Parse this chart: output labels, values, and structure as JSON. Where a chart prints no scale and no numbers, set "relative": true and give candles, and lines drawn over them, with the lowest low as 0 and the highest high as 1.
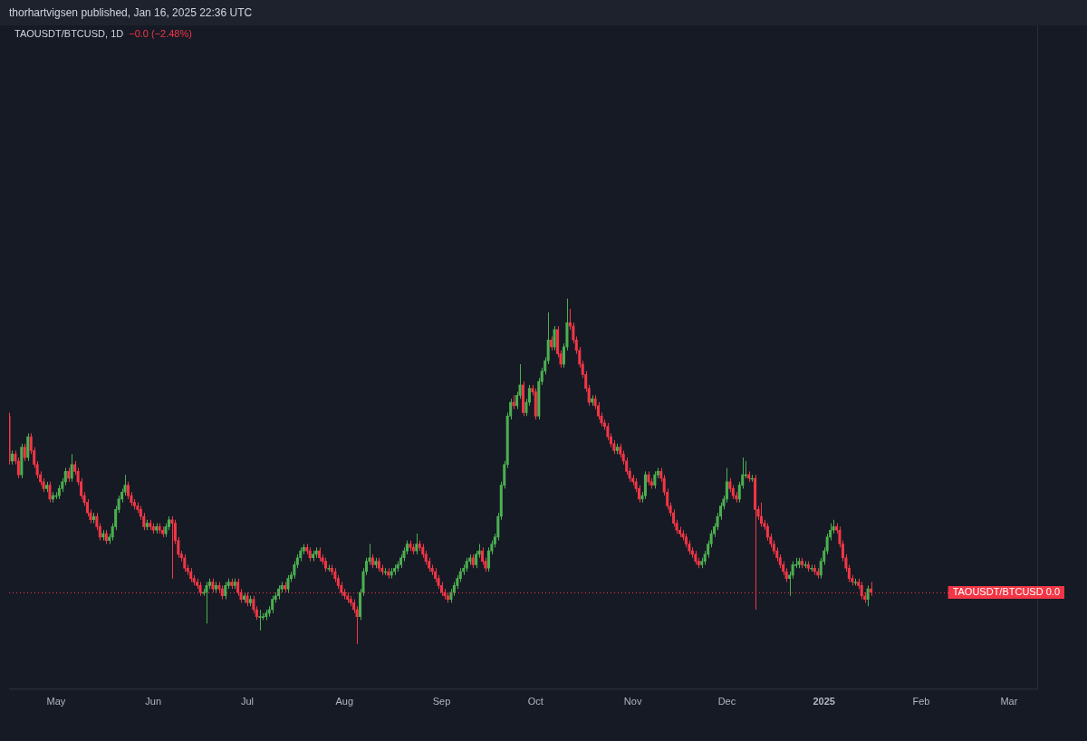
{
  "chart_data": {
    "type": "candlestick",
    "relative": true,
    "title": "TAOUSDT/BTCUSD, 1D",
    "subtitle": "−0.0 (−2.48%)",
    "annotations": [
      "thorhartvigsen published, Jan 16, 2025 22:36 UTC"
    ],
    "legend": false,
    "grid": false,
    "tick_labels": "x",
    "xlim": [
      "2024-04-16",
      "2025-03-10"
    ],
    "xticks": [
      {
        "value": "2024-05-01",
        "label": "May"
      },
      {
        "value": "2024-06-01",
        "label": "Jun"
      },
      {
        "value": "2024-07-01",
        "label": "Jul"
      },
      {
        "value": "2024-08-01",
        "label": "Aug"
      },
      {
        "value": "2024-09-01",
        "label": "Sep"
      },
      {
        "value": "2024-10-01",
        "label": "Oct"
      },
      {
        "value": "2024-11-01",
        "label": "Nov"
      },
      {
        "value": "2024-12-01",
        "label": "Dec"
      },
      {
        "value": "2025-01-01",
        "label": "2025"
      },
      {
        "value": "2025-02-01",
        "label": "Feb"
      },
      {
        "value": "2025-03-01",
        "label": "Mar"
      }
    ],
    "ref_lines": [
      {
        "axis": "y",
        "value": 0.15,
        "label": "TAOUSDT/BTCUSD 0.0",
        "color": "#f23645",
        "line_style": "dotted"
      }
    ],
    "x": [
      "2024-04-16",
      "2024-04-17",
      "2024-04-18",
      "2024-04-19",
      "2024-04-20",
      "2024-04-21",
      "2024-04-22",
      "2024-04-23",
      "2024-04-24",
      "2024-04-25",
      "2024-04-26",
      "2024-04-27",
      "2024-04-28",
      "2024-04-29",
      "2024-04-30",
      "2024-05-01",
      "2024-05-02",
      "2024-05-03",
      "2024-05-04",
      "2024-05-05",
      "2024-05-06",
      "2024-05-07",
      "2024-05-08",
      "2024-05-09",
      "2024-05-10",
      "2024-05-11",
      "2024-05-12",
      "2024-05-13",
      "2024-05-14",
      "2024-05-15",
      "2024-05-16",
      "2024-05-17",
      "2024-05-18",
      "2024-05-19",
      "2024-05-20",
      "2024-05-21",
      "2024-05-22",
      "2024-05-23",
      "2024-05-24",
      "2024-05-25",
      "2024-05-26",
      "2024-05-27",
      "2024-05-28",
      "2024-05-29",
      "2024-05-30",
      "2024-05-31",
      "2024-06-01",
      "2024-06-02",
      "2024-06-03",
      "2024-06-04",
      "2024-06-05",
      "2024-06-06",
      "2024-06-07",
      "2024-06-08",
      "2024-06-09",
      "2024-06-10",
      "2024-06-11",
      "2024-06-12",
      "2024-06-13",
      "2024-06-14",
      "2024-06-15",
      "2024-06-16",
      "2024-06-17",
      "2024-06-18",
      "2024-06-19",
      "2024-06-20",
      "2024-06-21",
      "2024-06-22",
      "2024-06-23",
      "2024-06-24",
      "2024-06-25",
      "2024-06-26",
      "2024-06-27",
      "2024-06-28",
      "2024-06-29",
      "2024-06-30",
      "2024-07-01",
      "2024-07-02",
      "2024-07-03",
      "2024-07-04",
      "2024-07-05",
      "2024-07-06",
      "2024-07-07",
      "2024-07-08",
      "2024-07-09",
      "2024-07-10",
      "2024-07-11",
      "2024-07-12",
      "2024-07-13",
      "2024-07-14",
      "2024-07-15",
      "2024-07-16",
      "2024-07-17",
      "2024-07-18",
      "2024-07-19",
      "2024-07-20",
      "2024-07-21",
      "2024-07-22",
      "2024-07-23",
      "2024-07-24",
      "2024-07-25",
      "2024-07-26",
      "2024-07-27",
      "2024-07-28",
      "2024-07-29",
      "2024-07-30",
      "2024-07-31",
      "2024-08-01",
      "2024-08-02",
      "2024-08-03",
      "2024-08-04",
      "2024-08-05",
      "2024-08-06",
      "2024-08-07",
      "2024-08-08",
      "2024-08-09",
      "2024-08-10",
      "2024-08-11",
      "2024-08-12",
      "2024-08-13",
      "2024-08-14",
      "2024-08-15",
      "2024-08-16",
      "2024-08-17",
      "2024-08-18",
      "2024-08-19",
      "2024-08-20",
      "2024-08-21",
      "2024-08-22",
      "2024-08-23",
      "2024-08-24",
      "2024-08-25",
      "2024-08-26",
      "2024-08-27",
      "2024-08-28",
      "2024-08-29",
      "2024-08-30",
      "2024-08-31",
      "2024-09-01",
      "2024-09-02",
      "2024-09-03",
      "2024-09-04",
      "2024-09-05",
      "2024-09-06",
      "2024-09-07",
      "2024-09-08",
      "2024-09-09",
      "2024-09-10",
      "2024-09-11",
      "2024-09-12",
      "2024-09-13",
      "2024-09-14",
      "2024-09-15",
      "2024-09-16",
      "2024-09-17",
      "2024-09-18",
      "2024-09-19",
      "2024-09-20",
      "2024-09-21",
      "2024-09-22",
      "2024-09-23",
      "2024-09-24",
      "2024-09-25",
      "2024-09-26",
      "2024-09-27",
      "2024-09-28",
      "2024-09-29",
      "2024-09-30",
      "2024-10-01",
      "2024-10-02",
      "2024-10-03",
      "2024-10-04",
      "2024-10-05",
      "2024-10-06",
      "2024-10-07",
      "2024-10-08",
      "2024-10-09",
      "2024-10-10",
      "2024-10-11",
      "2024-10-12",
      "2024-10-13",
      "2024-10-14",
      "2024-10-15",
      "2024-10-16",
      "2024-10-17",
      "2024-10-18",
      "2024-10-19",
      "2024-10-20",
      "2024-10-21",
      "2024-10-22",
      "2024-10-23",
      "2024-10-24",
      "2024-10-25",
      "2024-10-26",
      "2024-10-27",
      "2024-10-28",
      "2024-10-29",
      "2024-10-30",
      "2024-10-31",
      "2024-11-01",
      "2024-11-02",
      "2024-11-03",
      "2024-11-04",
      "2024-11-05",
      "2024-11-06",
      "2024-11-07",
      "2024-11-08",
      "2024-11-09",
      "2024-11-10",
      "2024-11-11",
      "2024-11-12",
      "2024-11-13",
      "2024-11-14",
      "2024-11-15",
      "2024-11-16",
      "2024-11-17",
      "2024-11-18",
      "2024-11-19",
      "2024-11-20",
      "2024-11-21",
      "2024-11-22",
      "2024-11-23",
      "2024-11-24",
      "2024-11-25",
      "2024-11-26",
      "2024-11-27",
      "2024-11-28",
      "2024-11-29",
      "2024-11-30",
      "2024-12-01",
      "2024-12-02",
      "2024-12-03",
      "2024-12-04",
      "2024-12-05",
      "2024-12-06",
      "2024-12-07",
      "2024-12-08",
      "2024-12-09",
      "2024-12-10",
      "2024-12-11",
      "2024-12-12",
      "2024-12-13",
      "2024-12-14",
      "2024-12-15",
      "2024-12-16",
      "2024-12-17",
      "2024-12-18",
      "2024-12-19",
      "2024-12-20",
      "2024-12-21",
      "2024-12-22",
      "2024-12-23",
      "2024-12-24",
      "2024-12-25",
      "2024-12-26",
      "2024-12-27",
      "2024-12-28",
      "2024-12-29",
      "2024-12-30",
      "2024-12-31",
      "2025-01-01",
      "2025-01-02",
      "2025-01-03",
      "2025-01-04",
      "2025-01-05",
      "2025-01-06",
      "2025-01-07",
      "2025-01-08",
      "2025-01-09",
      "2025-01-10",
      "2025-01-11",
      "2025-01-12",
      "2025-01-13",
      "2025-01-14",
      "2025-01-15",
      "2025-01-16"
    ],
    "ohlc": [
      [
        0.66,
        0.67,
        0.52,
        0.53
      ],
      [
        0.53,
        0.56,
        0.52,
        0.55
      ],
      [
        0.55,
        0.56,
        0.52,
        0.53
      ],
      [
        0.53,
        0.54,
        0.48,
        0.49
      ],
      [
        0.49,
        0.58,
        0.48,
        0.57
      ],
      [
        0.57,
        0.58,
        0.53,
        0.54
      ],
      [
        0.54,
        0.61,
        0.53,
        0.6
      ],
      [
        0.6,
        0.61,
        0.55,
        0.56
      ],
      [
        0.56,
        0.57,
        0.51,
        0.52
      ],
      [
        0.52,
        0.53,
        0.48,
        0.49
      ],
      [
        0.49,
        0.5,
        0.46,
        0.47
      ],
      [
        0.47,
        0.48,
        0.44,
        0.45
      ],
      [
        0.45,
        0.47,
        0.44,
        0.46
      ],
      [
        0.46,
        0.47,
        0.41,
        0.42
      ],
      [
        0.42,
        0.44,
        0.41,
        0.43
      ],
      [
        0.43,
        0.44,
        0.42,
        0.43
      ],
      [
        0.43,
        0.46,
        0.42,
        0.45
      ],
      [
        0.45,
        0.48,
        0.44,
        0.47
      ],
      [
        0.47,
        0.51,
        0.46,
        0.5
      ],
      [
        0.5,
        0.51,
        0.47,
        0.48
      ],
      [
        0.48,
        0.55,
        0.47,
        0.52
      ],
      [
        0.52,
        0.53,
        0.49,
        0.5
      ],
      [
        0.5,
        0.51,
        0.46,
        0.47
      ],
      [
        0.47,
        0.48,
        0.42,
        0.43
      ],
      [
        0.43,
        0.44,
        0.4,
        0.41
      ],
      [
        0.41,
        0.42,
        0.37,
        0.38
      ],
      [
        0.38,
        0.39,
        0.35,
        0.36
      ],
      [
        0.36,
        0.38,
        0.35,
        0.37
      ],
      [
        0.37,
        0.38,
        0.33,
        0.34
      ],
      [
        0.34,
        0.35,
        0.3,
        0.31
      ],
      [
        0.31,
        0.33,
        0.3,
        0.32
      ],
      [
        0.32,
        0.33,
        0.29,
        0.3
      ],
      [
        0.3,
        0.32,
        0.29,
        0.31
      ],
      [
        0.31,
        0.35,
        0.3,
        0.34
      ],
      [
        0.34,
        0.4,
        0.33,
        0.39
      ],
      [
        0.39,
        0.43,
        0.38,
        0.42
      ],
      [
        0.42,
        0.45,
        0.41,
        0.44
      ],
      [
        0.44,
        0.49,
        0.43,
        0.46
      ],
      [
        0.46,
        0.47,
        0.42,
        0.43
      ],
      [
        0.43,
        0.44,
        0.4,
        0.41
      ],
      [
        0.41,
        0.42,
        0.39,
        0.4
      ],
      [
        0.4,
        0.41,
        0.38,
        0.39
      ],
      [
        0.39,
        0.4,
        0.36,
        0.37
      ],
      [
        0.37,
        0.38,
        0.33,
        0.34
      ],
      [
        0.34,
        0.36,
        0.33,
        0.35
      ],
      [
        0.35,
        0.36,
        0.33,
        0.34
      ],
      [
        0.34,
        0.35,
        0.32,
        0.33
      ],
      [
        0.33,
        0.35,
        0.32,
        0.34
      ],
      [
        0.34,
        0.35,
        0.32,
        0.33
      ],
      [
        0.33,
        0.34,
        0.31,
        0.32
      ],
      [
        0.32,
        0.35,
        0.31,
        0.34
      ],
      [
        0.34,
        0.37,
        0.33,
        0.36
      ],
      [
        0.36,
        0.37,
        0.19,
        0.35
      ],
      [
        0.35,
        0.36,
        0.29,
        0.3
      ],
      [
        0.3,
        0.31,
        0.25,
        0.26
      ],
      [
        0.26,
        0.27,
        0.24,
        0.25
      ],
      [
        0.25,
        0.26,
        0.21,
        0.22
      ],
      [
        0.22,
        0.23,
        0.2,
        0.21
      ],
      [
        0.21,
        0.22,
        0.18,
        0.19
      ],
      [
        0.19,
        0.2,
        0.17,
        0.18
      ],
      [
        0.18,
        0.19,
        0.16,
        0.17
      ],
      [
        0.17,
        0.18,
        0.14,
        0.15
      ],
      [
        0.15,
        0.16,
        0.14,
        0.15
      ],
      [
        0.15,
        0.18,
        0.06,
        0.17
      ],
      [
        0.17,
        0.19,
        0.16,
        0.18
      ],
      [
        0.18,
        0.19,
        0.15,
        0.16
      ],
      [
        0.16,
        0.18,
        0.15,
        0.17
      ],
      [
        0.17,
        0.18,
        0.15,
        0.16
      ],
      [
        0.16,
        0.17,
        0.13,
        0.14
      ],
      [
        0.14,
        0.18,
        0.13,
        0.17
      ],
      [
        0.17,
        0.19,
        0.16,
        0.18
      ],
      [
        0.18,
        0.19,
        0.16,
        0.17
      ],
      [
        0.17,
        0.19,
        0.16,
        0.18
      ],
      [
        0.18,
        0.19,
        0.14,
        0.15
      ],
      [
        0.15,
        0.16,
        0.12,
        0.13
      ],
      [
        0.13,
        0.15,
        0.12,
        0.14
      ],
      [
        0.14,
        0.15,
        0.11,
        0.12
      ],
      [
        0.12,
        0.14,
        0.11,
        0.13
      ],
      [
        0.13,
        0.14,
        0.09,
        0.1
      ],
      [
        0.1,
        0.11,
        0.07,
        0.08
      ],
      [
        0.08,
        0.1,
        0.04,
        0.08
      ],
      [
        0.08,
        0.09,
        0.07,
        0.08
      ],
      [
        0.08,
        0.1,
        0.07,
        0.09
      ],
      [
        0.09,
        0.11,
        0.08,
        0.1
      ],
      [
        0.1,
        0.14,
        0.09,
        0.13
      ],
      [
        0.13,
        0.15,
        0.12,
        0.14
      ],
      [
        0.14,
        0.17,
        0.13,
        0.16
      ],
      [
        0.16,
        0.18,
        0.15,
        0.17
      ],
      [
        0.17,
        0.18,
        0.15,
        0.16
      ],
      [
        0.16,
        0.2,
        0.15,
        0.19
      ],
      [
        0.19,
        0.21,
        0.18,
        0.2
      ],
      [
        0.2,
        0.24,
        0.19,
        0.23
      ],
      [
        0.23,
        0.26,
        0.22,
        0.25
      ],
      [
        0.25,
        0.28,
        0.24,
        0.27
      ],
      [
        0.27,
        0.29,
        0.26,
        0.28
      ],
      [
        0.28,
        0.29,
        0.26,
        0.27
      ],
      [
        0.27,
        0.28,
        0.24,
        0.25
      ],
      [
        0.25,
        0.27,
        0.24,
        0.26
      ],
      [
        0.26,
        0.28,
        0.25,
        0.27
      ],
      [
        0.27,
        0.28,
        0.24,
        0.25
      ],
      [
        0.25,
        0.26,
        0.23,
        0.24
      ],
      [
        0.24,
        0.25,
        0.21,
        0.22
      ],
      [
        0.22,
        0.23,
        0.21,
        0.22
      ],
      [
        0.22,
        0.23,
        0.2,
        0.21
      ],
      [
        0.21,
        0.22,
        0.18,
        0.19
      ],
      [
        0.19,
        0.2,
        0.16,
        0.17
      ],
      [
        0.17,
        0.18,
        0.14,
        0.15
      ],
      [
        0.15,
        0.16,
        0.13,
        0.14
      ],
      [
        0.14,
        0.15,
        0.12,
        0.13
      ],
      [
        0.13,
        0.14,
        0.11,
        0.12
      ],
      [
        0.12,
        0.13,
        0.09,
        0.1
      ],
      [
        0.1,
        0.11,
        0.0,
        0.08
      ],
      [
        0.08,
        0.16,
        0.07,
        0.15
      ],
      [
        0.15,
        0.22,
        0.14,
        0.21
      ],
      [
        0.21,
        0.25,
        0.2,
        0.24
      ],
      [
        0.24,
        0.29,
        0.23,
        0.25
      ],
      [
        0.25,
        0.26,
        0.22,
        0.23
      ],
      [
        0.23,
        0.25,
        0.22,
        0.24
      ],
      [
        0.24,
        0.25,
        0.21,
        0.22
      ],
      [
        0.22,
        0.23,
        0.2,
        0.21
      ],
      [
        0.21,
        0.22,
        0.2,
        0.21
      ],
      [
        0.21,
        0.22,
        0.19,
        0.2
      ],
      [
        0.2,
        0.22,
        0.19,
        0.21
      ],
      [
        0.21,
        0.23,
        0.2,
        0.22
      ],
      [
        0.22,
        0.24,
        0.21,
        0.23
      ],
      [
        0.23,
        0.26,
        0.22,
        0.25
      ],
      [
        0.25,
        0.28,
        0.24,
        0.27
      ],
      [
        0.27,
        0.3,
        0.26,
        0.29
      ],
      [
        0.29,
        0.3,
        0.27,
        0.28
      ],
      [
        0.28,
        0.29,
        0.26,
        0.27
      ],
      [
        0.27,
        0.32,
        0.26,
        0.29
      ],
      [
        0.29,
        0.3,
        0.27,
        0.28
      ],
      [
        0.28,
        0.29,
        0.25,
        0.26
      ],
      [
        0.26,
        0.27,
        0.23,
        0.24
      ],
      [
        0.24,
        0.25,
        0.21,
        0.22
      ],
      [
        0.22,
        0.23,
        0.2,
        0.21
      ],
      [
        0.21,
        0.22,
        0.18,
        0.19
      ],
      [
        0.19,
        0.2,
        0.16,
        0.17
      ],
      [
        0.17,
        0.18,
        0.14,
        0.15
      ],
      [
        0.15,
        0.16,
        0.13,
        0.14
      ],
      [
        0.14,
        0.15,
        0.12,
        0.13
      ],
      [
        0.13,
        0.16,
        0.12,
        0.15
      ],
      [
        0.15,
        0.18,
        0.14,
        0.17
      ],
      [
        0.17,
        0.2,
        0.16,
        0.19
      ],
      [
        0.19,
        0.22,
        0.18,
        0.21
      ],
      [
        0.21,
        0.23,
        0.2,
        0.22
      ],
      [
        0.22,
        0.25,
        0.21,
        0.24
      ],
      [
        0.24,
        0.26,
        0.23,
        0.25
      ],
      [
        0.25,
        0.26,
        0.22,
        0.23
      ],
      [
        0.23,
        0.27,
        0.22,
        0.26
      ],
      [
        0.26,
        0.29,
        0.25,
        0.27
      ],
      [
        0.27,
        0.28,
        0.23,
        0.24
      ],
      [
        0.24,
        0.25,
        0.21,
        0.22
      ],
      [
        0.22,
        0.28,
        0.21,
        0.27
      ],
      [
        0.27,
        0.3,
        0.26,
        0.29
      ],
      [
        0.29,
        0.32,
        0.28,
        0.31
      ],
      [
        0.31,
        0.38,
        0.3,
        0.37
      ],
      [
        0.37,
        0.47,
        0.36,
        0.46
      ],
      [
        0.46,
        0.53,
        0.45,
        0.52
      ],
      [
        0.52,
        0.67,
        0.51,
        0.66
      ],
      [
        0.66,
        0.71,
        0.65,
        0.7
      ],
      [
        0.7,
        0.72,
        0.68,
        0.69
      ],
      [
        0.69,
        0.73,
        0.68,
        0.72
      ],
      [
        0.72,
        0.81,
        0.71,
        0.75
      ],
      [
        0.75,
        0.76,
        0.66,
        0.67
      ],
      [
        0.67,
        0.71,
        0.66,
        0.7
      ],
      [
        0.7,
        0.75,
        0.69,
        0.74
      ],
      [
        0.74,
        0.75,
        0.72,
        0.73
      ],
      [
        0.73,
        0.74,
        0.65,
        0.66
      ],
      [
        0.66,
        0.77,
        0.65,
        0.76
      ],
      [
        0.76,
        0.8,
        0.75,
        0.79
      ],
      [
        0.79,
        0.83,
        0.78,
        0.82
      ],
      [
        0.82,
        0.96,
        0.81,
        0.88
      ],
      [
        0.88,
        0.89,
        0.85,
        0.86
      ],
      [
        0.86,
        0.92,
        0.85,
        0.91
      ],
      [
        0.91,
        0.92,
        0.83,
        0.84
      ],
      [
        0.84,
        0.85,
        0.8,
        0.81
      ],
      [
        0.81,
        0.87,
        0.8,
        0.86
      ],
      [
        0.86,
        1.0,
        0.85,
        0.93
      ],
      [
        0.93,
        0.97,
        0.91,
        0.92
      ],
      [
        0.92,
        0.93,
        0.87,
        0.88
      ],
      [
        0.88,
        0.89,
        0.84,
        0.85
      ],
      [
        0.85,
        0.86,
        0.8,
        0.81
      ],
      [
        0.81,
        0.82,
        0.77,
        0.78
      ],
      [
        0.78,
        0.79,
        0.73,
        0.74
      ],
      [
        0.74,
        0.75,
        0.69,
        0.7
      ],
      [
        0.7,
        0.72,
        0.69,
        0.71
      ],
      [
        0.71,
        0.72,
        0.68,
        0.69
      ],
      [
        0.69,
        0.7,
        0.65,
        0.66
      ],
      [
        0.66,
        0.67,
        0.63,
        0.64
      ],
      [
        0.64,
        0.65,
        0.62,
        0.63
      ],
      [
        0.63,
        0.64,
        0.59,
        0.6
      ],
      [
        0.6,
        0.61,
        0.57,
        0.58
      ],
      [
        0.58,
        0.59,
        0.55,
        0.56
      ],
      [
        0.56,
        0.58,
        0.55,
        0.57
      ],
      [
        0.57,
        0.58,
        0.54,
        0.55
      ],
      [
        0.55,
        0.56,
        0.52,
        0.53
      ],
      [
        0.53,
        0.54,
        0.49,
        0.5
      ],
      [
        0.5,
        0.51,
        0.47,
        0.48
      ],
      [
        0.48,
        0.49,
        0.46,
        0.47
      ],
      [
        0.47,
        0.48,
        0.44,
        0.45
      ],
      [
        0.45,
        0.46,
        0.41,
        0.42
      ],
      [
        0.42,
        0.44,
        0.41,
        0.43
      ],
      [
        0.43,
        0.5,
        0.42,
        0.49
      ],
      [
        0.49,
        0.5,
        0.46,
        0.47
      ],
      [
        0.47,
        0.48,
        0.45,
        0.46
      ],
      [
        0.46,
        0.5,
        0.45,
        0.49
      ],
      [
        0.49,
        0.51,
        0.48,
        0.5
      ],
      [
        0.5,
        0.51,
        0.47,
        0.48
      ],
      [
        0.48,
        0.49,
        0.43,
        0.44
      ],
      [
        0.44,
        0.45,
        0.39,
        0.4
      ],
      [
        0.4,
        0.41,
        0.37,
        0.38
      ],
      [
        0.38,
        0.39,
        0.34,
        0.35
      ],
      [
        0.35,
        0.36,
        0.32,
        0.33
      ],
      [
        0.33,
        0.34,
        0.31,
        0.32
      ],
      [
        0.32,
        0.33,
        0.3,
        0.31
      ],
      [
        0.31,
        0.32,
        0.28,
        0.29
      ],
      [
        0.29,
        0.3,
        0.26,
        0.27
      ],
      [
        0.27,
        0.28,
        0.25,
        0.26
      ],
      [
        0.26,
        0.27,
        0.23,
        0.24
      ],
      [
        0.24,
        0.25,
        0.22,
        0.23
      ],
      [
        0.23,
        0.25,
        0.22,
        0.24
      ],
      [
        0.24,
        0.27,
        0.23,
        0.26
      ],
      [
        0.26,
        0.3,
        0.25,
        0.29
      ],
      [
        0.29,
        0.33,
        0.28,
        0.32
      ],
      [
        0.32,
        0.35,
        0.31,
        0.34
      ],
      [
        0.34,
        0.38,
        0.33,
        0.37
      ],
      [
        0.37,
        0.41,
        0.36,
        0.4
      ],
      [
        0.4,
        0.43,
        0.39,
        0.42
      ],
      [
        0.42,
        0.51,
        0.41,
        0.47
      ],
      [
        0.47,
        0.48,
        0.44,
        0.45
      ],
      [
        0.45,
        0.46,
        0.42,
        0.43
      ],
      [
        0.43,
        0.44,
        0.41,
        0.42
      ],
      [
        0.42,
        0.47,
        0.41,
        0.46
      ],
      [
        0.46,
        0.54,
        0.45,
        0.49
      ],
      [
        0.49,
        0.53,
        0.48,
        0.49
      ],
      [
        0.49,
        0.5,
        0.47,
        0.48
      ],
      [
        0.48,
        0.49,
        0.47,
        0.48
      ],
      [
        0.48,
        0.49,
        0.1,
        0.39
      ],
      [
        0.39,
        0.4,
        0.36,
        0.37
      ],
      [
        0.37,
        0.41,
        0.34,
        0.35
      ],
      [
        0.35,
        0.36,
        0.33,
        0.34
      ],
      [
        0.34,
        0.35,
        0.3,
        0.31
      ],
      [
        0.31,
        0.32,
        0.28,
        0.29
      ],
      [
        0.29,
        0.3,
        0.26,
        0.27
      ],
      [
        0.27,
        0.28,
        0.24,
        0.25
      ],
      [
        0.25,
        0.26,
        0.22,
        0.23
      ],
      [
        0.23,
        0.24,
        0.2,
        0.21
      ],
      [
        0.21,
        0.22,
        0.18,
        0.19
      ],
      [
        0.19,
        0.21,
        0.14,
        0.2
      ],
      [
        0.2,
        0.24,
        0.19,
        0.23
      ],
      [
        0.23,
        0.25,
        0.22,
        0.23
      ],
      [
        0.23,
        0.25,
        0.22,
        0.24
      ],
      [
        0.24,
        0.25,
        0.22,
        0.23
      ],
      [
        0.23,
        0.24,
        0.22,
        0.23
      ],
      [
        0.23,
        0.24,
        0.21,
        0.22
      ],
      [
        0.22,
        0.23,
        0.21,
        0.22
      ],
      [
        0.22,
        0.23,
        0.2,
        0.21
      ],
      [
        0.21,
        0.22,
        0.19,
        0.2
      ],
      [
        0.2,
        0.25,
        0.19,
        0.24
      ],
      [
        0.24,
        0.28,
        0.23,
        0.27
      ],
      [
        0.27,
        0.32,
        0.26,
        0.31
      ],
      [
        0.31,
        0.35,
        0.3,
        0.33
      ],
      [
        0.33,
        0.36,
        0.32,
        0.34
      ],
      [
        0.34,
        0.35,
        0.32,
        0.33
      ],
      [
        0.33,
        0.34,
        0.28,
        0.29
      ],
      [
        0.29,
        0.3,
        0.24,
        0.25
      ],
      [
        0.25,
        0.26,
        0.21,
        0.22
      ],
      [
        0.22,
        0.23,
        0.18,
        0.19
      ],
      [
        0.19,
        0.2,
        0.17,
        0.18
      ],
      [
        0.18,
        0.19,
        0.17,
        0.18
      ],
      [
        0.18,
        0.19,
        0.16,
        0.17
      ],
      [
        0.17,
        0.18,
        0.13,
        0.14
      ],
      [
        0.14,
        0.15,
        0.12,
        0.13
      ],
      [
        0.13,
        0.17,
        0.11,
        0.16
      ],
      [
        0.16,
        0.18,
        0.14,
        0.15
      ]
    ]
  }
}
